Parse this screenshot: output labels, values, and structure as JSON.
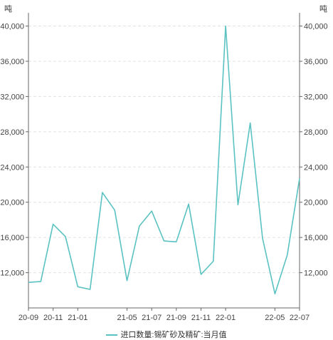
{
  "chart_data": {
    "type": "line",
    "unit_left": "吨",
    "unit_right": "吨",
    "x": [
      "20-09",
      "20-10",
      "20-11",
      "20-12",
      "21-01",
      "21-02",
      "21-03",
      "21-04",
      "21-05",
      "21-06",
      "21-07",
      "21-08",
      "21-09",
      "21-10",
      "21-11",
      "21-12",
      "22-01",
      "22-02",
      "22-03",
      "22-04",
      "22-05",
      "22-06",
      "22-07"
    ],
    "x_tick_labels": [
      "20-09",
      "20-11",
      "21-01",
      "21-05",
      "21-07",
      "21-09",
      "21-11",
      "22-01",
      "22-05",
      "22-07"
    ],
    "series": [
      {
        "name": "进口数量:锡矿砂及精矿:当月值",
        "color": "#5bc2c2",
        "values": [
          10900,
          11000,
          17500,
          16100,
          10400,
          10100,
          21100,
          19100,
          11100,
          17300,
          19000,
          15600,
          15500,
          19800,
          11800,
          13300,
          40000,
          19700,
          29000,
          15900,
          9600,
          14000,
          22700
        ]
      }
    ],
    "y_ticks": [
      12000,
      16000,
      20000,
      24000,
      28000,
      32000,
      36000,
      40000
    ],
    "y_tick_labels": [
      "12,000",
      "16,000",
      "20,000",
      "24,000",
      "28,000",
      "32,000",
      "36,000",
      "40,000"
    ],
    "ylim": [
      8000,
      41500
    ],
    "grid": true,
    "legend_position": "bottom"
  }
}
